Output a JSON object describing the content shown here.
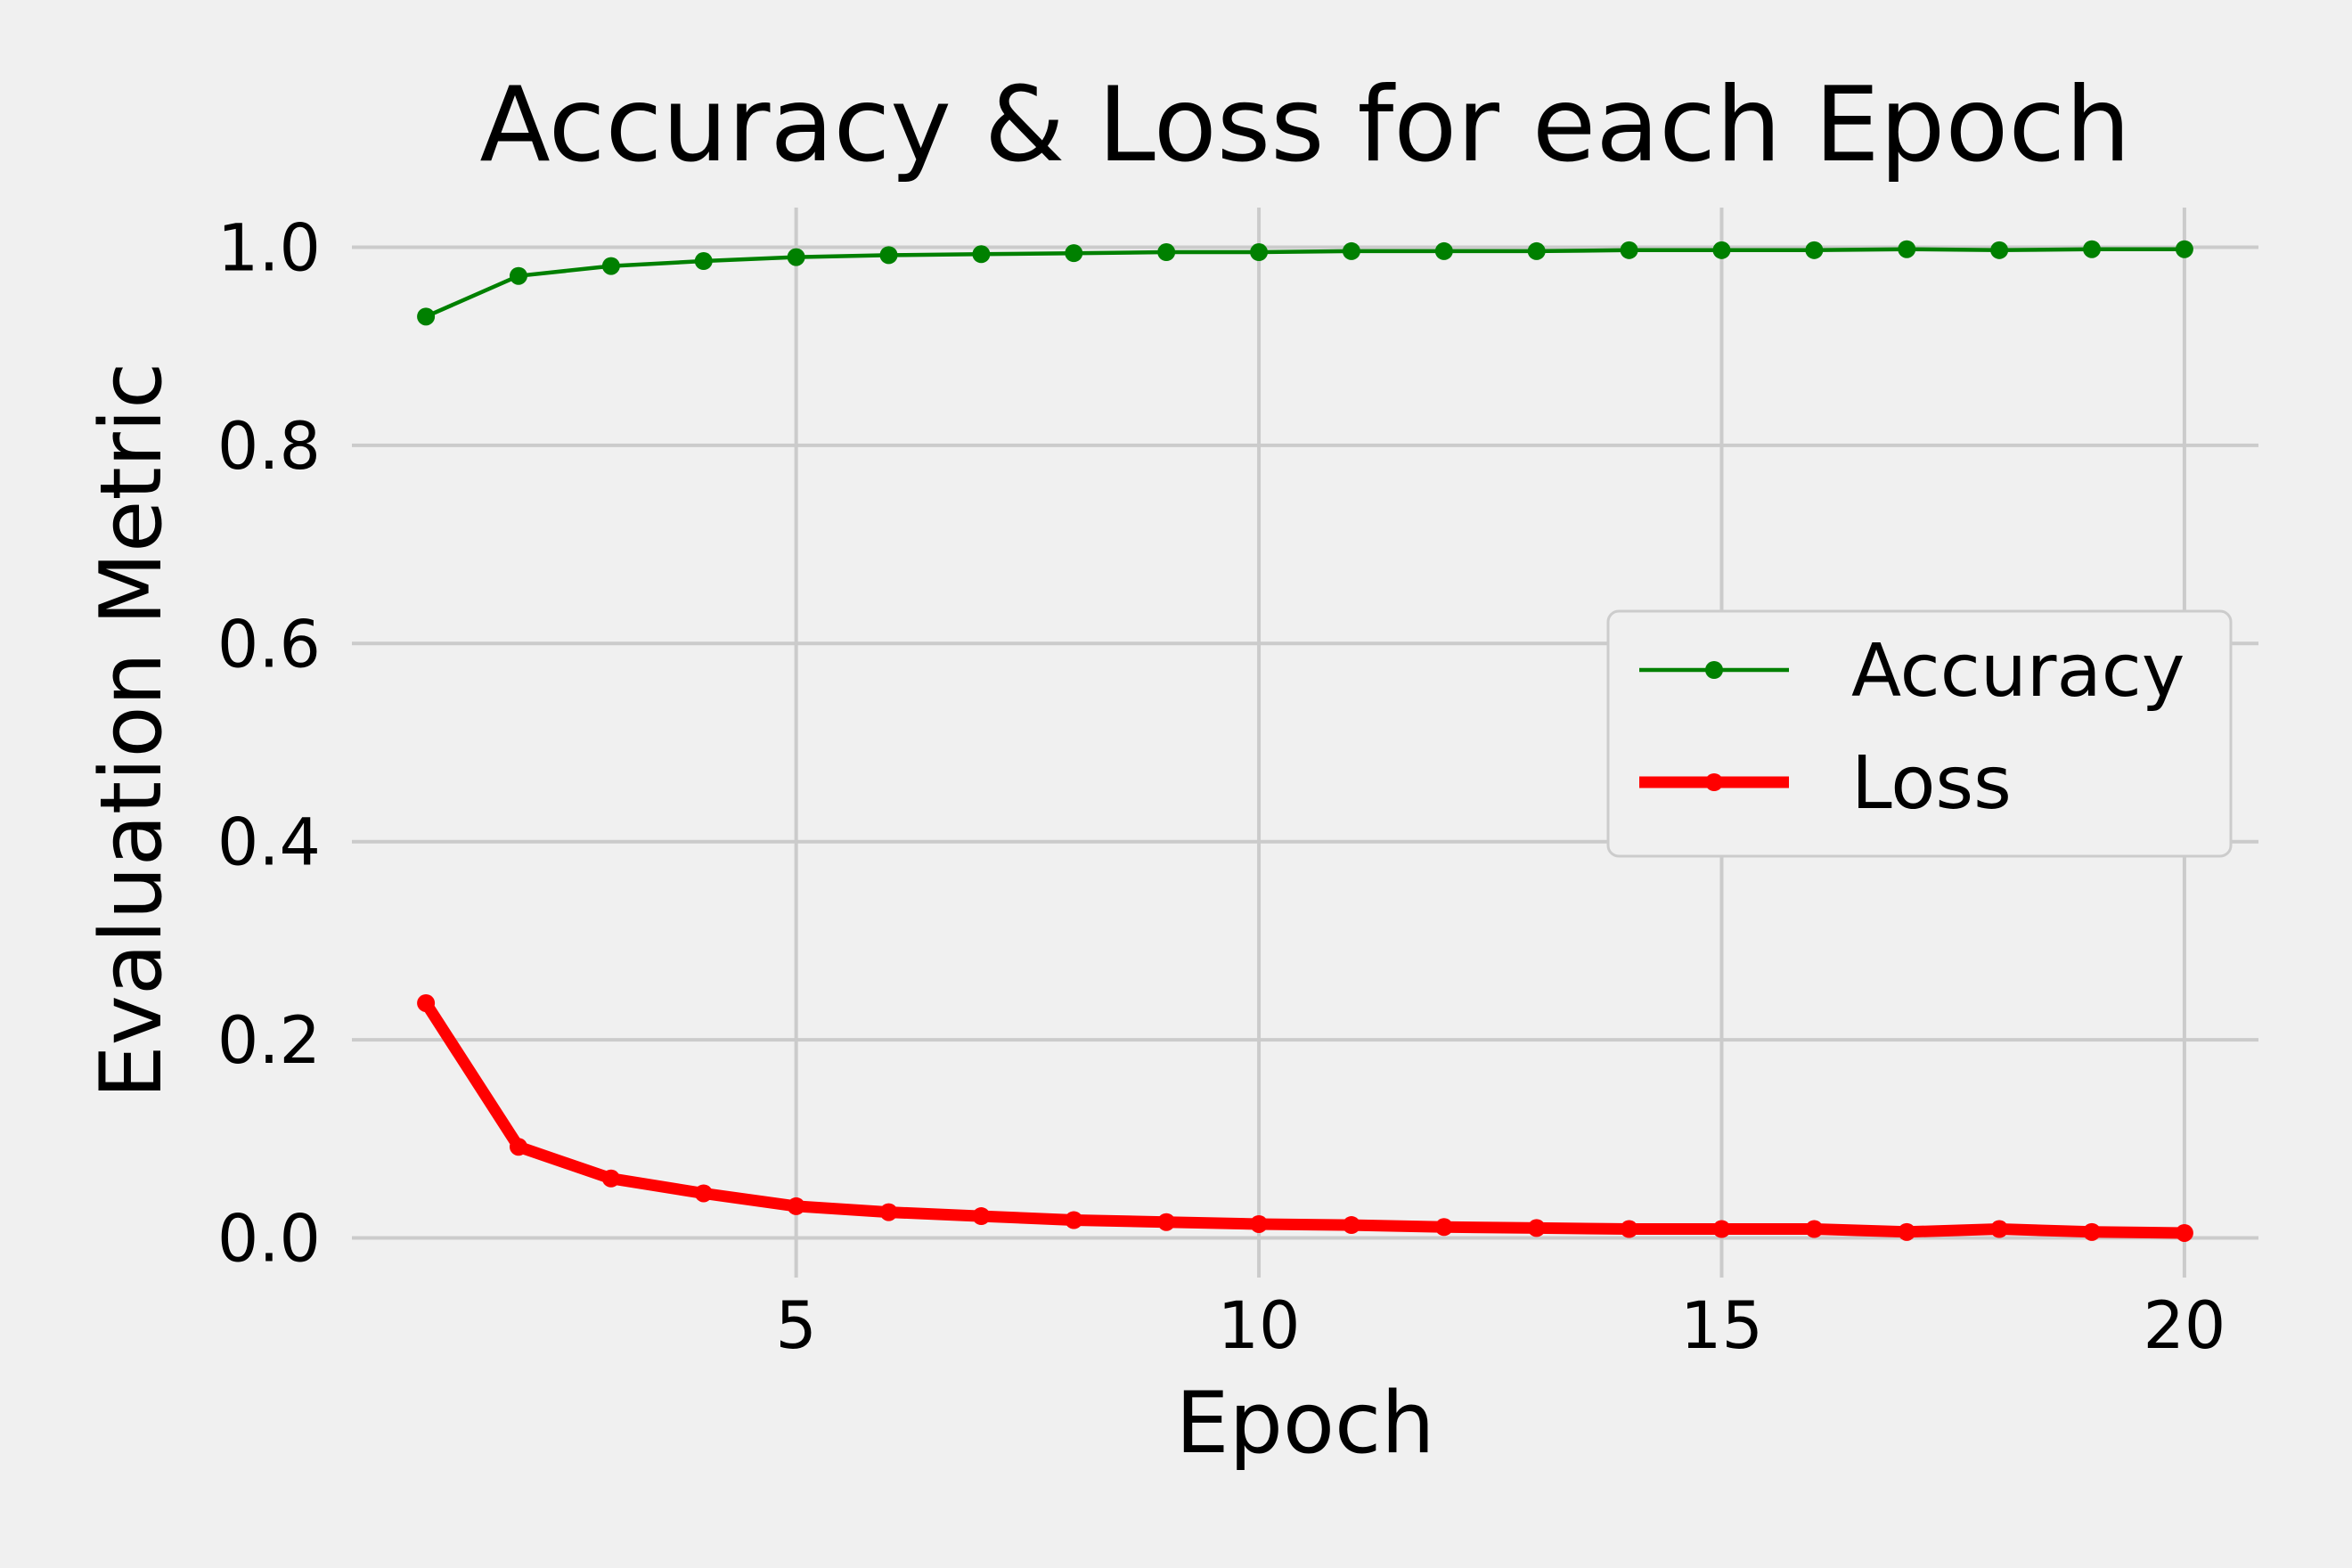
{
  "chart_data": {
    "type": "line",
    "title": "Accuracy & Loss for each Epoch",
    "xlabel": "Epoch",
    "ylabel": "Evaluation Metric",
    "xlim": [
      0.2,
      20.8
    ],
    "ylim": [
      -0.04,
      1.04
    ],
    "xticks": [
      5,
      10,
      15,
      20
    ],
    "yticks": [
      0.0,
      0.2,
      0.4,
      0.6,
      0.8,
      1.0
    ],
    "ytick_labels": [
      "0.0",
      "0.2",
      "0.4",
      "0.6",
      "0.8",
      "1.0"
    ],
    "xtick_labels": [
      "5",
      "10",
      "15",
      "20"
    ],
    "grid": true,
    "legend": "center-right",
    "x": [
      1,
      2,
      3,
      4,
      5,
      6,
      7,
      8,
      9,
      10,
      11,
      12,
      13,
      14,
      15,
      16,
      17,
      18,
      19,
      20
    ],
    "series": [
      {
        "name": "Accuracy",
        "color": "#008000",
        "values": [
          0.93,
          0.971,
          0.981,
          0.986,
          0.99,
          0.992,
          0.993,
          0.994,
          0.995,
          0.995,
          0.996,
          0.996,
          0.996,
          0.997,
          0.997,
          0.997,
          0.998,
          0.997,
          0.998,
          0.998
        ]
      },
      {
        "name": "Loss",
        "color": "#ff0000",
        "values": [
          0.237,
          0.092,
          0.06,
          0.045,
          0.032,
          0.026,
          0.022,
          0.018,
          0.016,
          0.014,
          0.013,
          0.011,
          0.01,
          0.009,
          0.009,
          0.009,
          0.006,
          0.009,
          0.006,
          0.005
        ]
      }
    ]
  }
}
